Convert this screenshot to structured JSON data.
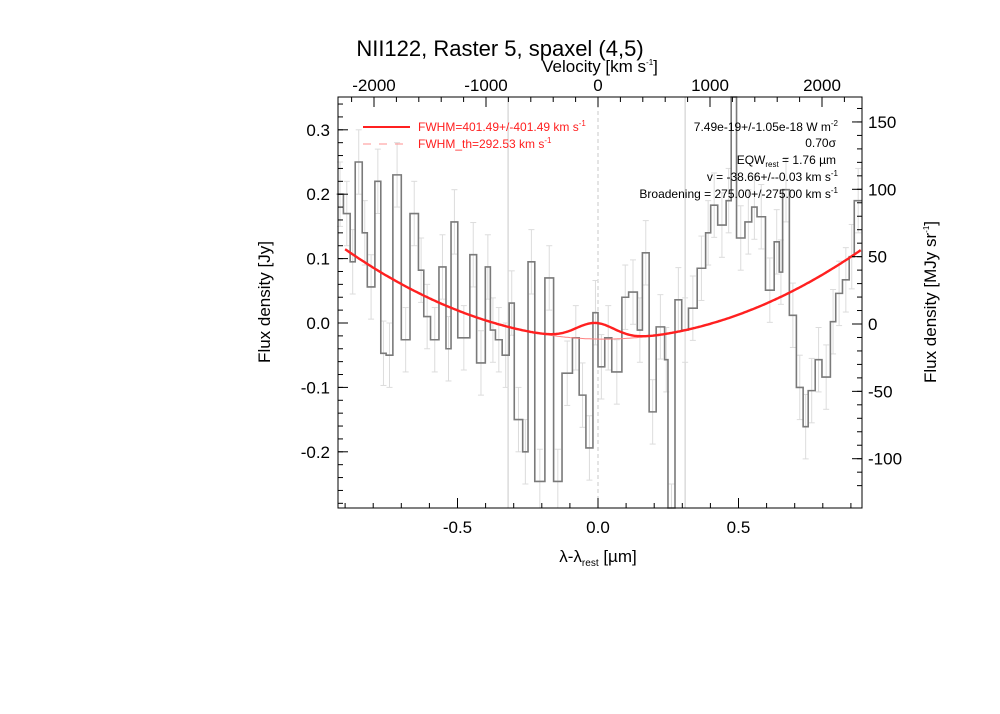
{
  "chart_data": {
    "type": "line",
    "title": "NII122, Raster 5, spaxel (4,5)",
    "xlabel_main": "λ-λ",
    "xlabel_sub": "rest",
    "xlabel_unit": " [µm]",
    "ylabel": "Flux density [Jy]",
    "ylabel_right_main": "Flux density [MJy sr",
    "ylabel_right_sup": "-1",
    "ylabel_right_end": "]",
    "xlabel_top_main": "Velocity [km s",
    "xlabel_top_sup": "-1",
    "xlabel_top_end": "]",
    "xlim": [
      -0.93,
      0.94
    ],
    "ylim": [
      -0.287,
      0.351
    ],
    "ylim_right": [
      -130,
      170
    ],
    "xticks": [
      -0.5,
      0.0,
      0.5
    ],
    "xtick_labels": [
      "-0.5",
      "0.0",
      "0.5"
    ],
    "yticks": [
      -0.2,
      -0.1,
      0.0,
      0.1,
      0.2,
      0.3
    ],
    "ytick_labels": [
      "-0.2",
      "-0.1",
      "0.0",
      "0.1",
      "0.2",
      "0.3"
    ],
    "yticks_right": [
      -100,
      -50,
      0,
      50,
      100,
      150
    ],
    "ytick_right_labels": [
      "-100",
      "-50",
      "0",
      "50",
      "100",
      "150"
    ],
    "xticks_top": [
      -2000,
      -1000,
      0,
      1000,
      2000
    ],
    "xtick_top_labels": [
      "-2000",
      "-1000",
      "0",
      "1000",
      "2000"
    ],
    "vlines_solid": [
      -0.32,
      0.31
    ],
    "vline_dashed": 0.0,
    "spectrum": {
      "name": "observed flux (histogram)",
      "bin_edges": [
        -0.93,
        -0.906,
        -0.882,
        -0.864,
        -0.839,
        -0.821,
        -0.794,
        -0.773,
        -0.754,
        -0.73,
        -0.7,
        -0.669,
        -0.639,
        -0.62,
        -0.596,
        -0.566,
        -0.541,
        -0.523,
        -0.499,
        -0.456,
        -0.432,
        -0.401,
        -0.383,
        -0.365,
        -0.341,
        -0.316,
        -0.298,
        -0.268,
        -0.249,
        -0.225,
        -0.189,
        -0.158,
        -0.128,
        -0.091,
        -0.067,
        -0.043,
        -0.018,
        0.0,
        0.024,
        0.049,
        0.085,
        0.109,
        0.14,
        0.158,
        0.182,
        0.207,
        0.237,
        0.249,
        0.274,
        0.298,
        0.322,
        0.353,
        0.383,
        0.401,
        0.426,
        0.456,
        0.474,
        0.493,
        0.523,
        0.547,
        0.566,
        0.596,
        0.627,
        0.645,
        0.657,
        0.681,
        0.706,
        0.73,
        0.748,
        0.773,
        0.797,
        0.827,
        0.846,
        0.87,
        0.894,
        0.912,
        0.94
      ],
      "values": [
        0.2,
        0.17,
        0.095,
        0.25,
        0.14,
        0.056,
        0.22,
        -0.047,
        -0.05,
        0.23,
        -0.026,
        0.17,
        0.082,
        0.01,
        -0.026,
        0.087,
        -0.04,
        0.157,
        -0.023,
        0.106,
        -0.062,
        0.087,
        -0.011,
        -0.026,
        -0.05,
        0.031,
        -0.15,
        -0.2,
        0.095,
        -0.246,
        0.07,
        -0.246,
        -0.078,
        -0.023,
        -0.112,
        -0.194,
        0.016,
        -0.068,
        -0.023,
        -0.076,
        0.04,
        0.048,
        -0.011,
        0.109,
        -0.138,
        -0.006,
        -0.057,
        -0.3,
        0.036,
        -0.011,
        0.023,
        0.085,
        0.14,
        0.183,
        0.152,
        0.19,
        0.4,
        0.132,
        0.157,
        0.18,
        0.165,
        0.051,
        0.126,
        0.079,
        0.207,
        0.012,
        -0.1,
        -0.161,
        -0.105,
        -0.057,
        -0.084,
        0.002,
        0.046,
        0.067,
        0.103,
        0.19
      ],
      "error": 0.05,
      "color": "#808080"
    },
    "fit": {
      "name": "FWHM=401.49+/-401.49 km s-1",
      "continuum": {
        "a": 0.165,
        "x0": 0.02,
        "c": -0.025
      },
      "gaussian": {
        "amp": 0.025,
        "center": -0.01,
        "sigma": 0.069
      },
      "color": "#ff2020"
    },
    "legend": {
      "placement": "top-left",
      "fit_label_main": "FWHM=401.49+/-401.49 km s",
      "fit_label_sup": "-1",
      "th_label_main": "FWHM_th=292.53 km s",
      "th_label_sup": "-1"
    },
    "annotations": {
      "flux_main": "7.49e-19+/-1.05e-18 W m",
      "flux_sup": "-2",
      "sigma": "0.70σ",
      "eqw_main": "EQW",
      "eqw_sub": "rest",
      "eqw_val": " = 1.76 µm",
      "v_main": "v = -38.66+/--0.03 km s",
      "v_sup": "-1",
      "broad_main": "Broadening = 275.00+/-275.00 km s",
      "broad_sup": "-1"
    }
  }
}
